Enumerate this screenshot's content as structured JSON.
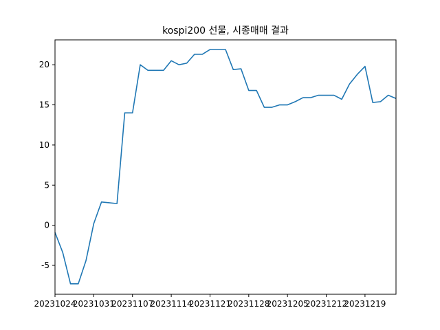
{
  "chart_data": {
    "type": "line",
    "title": "kospi200 선물, 시종매매 결과",
    "xlabel": "",
    "ylabel": "",
    "x_ticks": [
      "20231024",
      "20231031",
      "20231107",
      "20231114",
      "20231121",
      "20231128",
      "20231205",
      "20231212",
      "20231219"
    ],
    "y_ticks": [
      "-5",
      "0",
      "5",
      "10",
      "15",
      "20"
    ],
    "ylim": [
      -8.6,
      23.1
    ],
    "grid": false,
    "legend": "none",
    "color": "#1f77b4",
    "series": [
      {
        "values": [
          -0.9,
          -3.4,
          -7.3,
          -7.3,
          -4.4,
          0.2,
          2.9,
          2.8,
          2.7,
          14.0,
          14.0,
          20.0,
          19.3,
          19.3,
          19.3,
          20.5,
          20.0,
          20.2,
          21.3,
          21.3,
          21.9,
          21.9,
          21.9,
          19.4,
          19.5,
          16.8,
          16.8,
          14.7,
          14.7,
          15.0,
          15.0,
          15.4,
          15.9,
          15.9,
          16.2,
          16.2,
          16.2,
          15.7,
          17.6,
          18.8,
          19.8,
          15.3,
          15.4,
          16.2,
          15.8
        ]
      }
    ]
  }
}
